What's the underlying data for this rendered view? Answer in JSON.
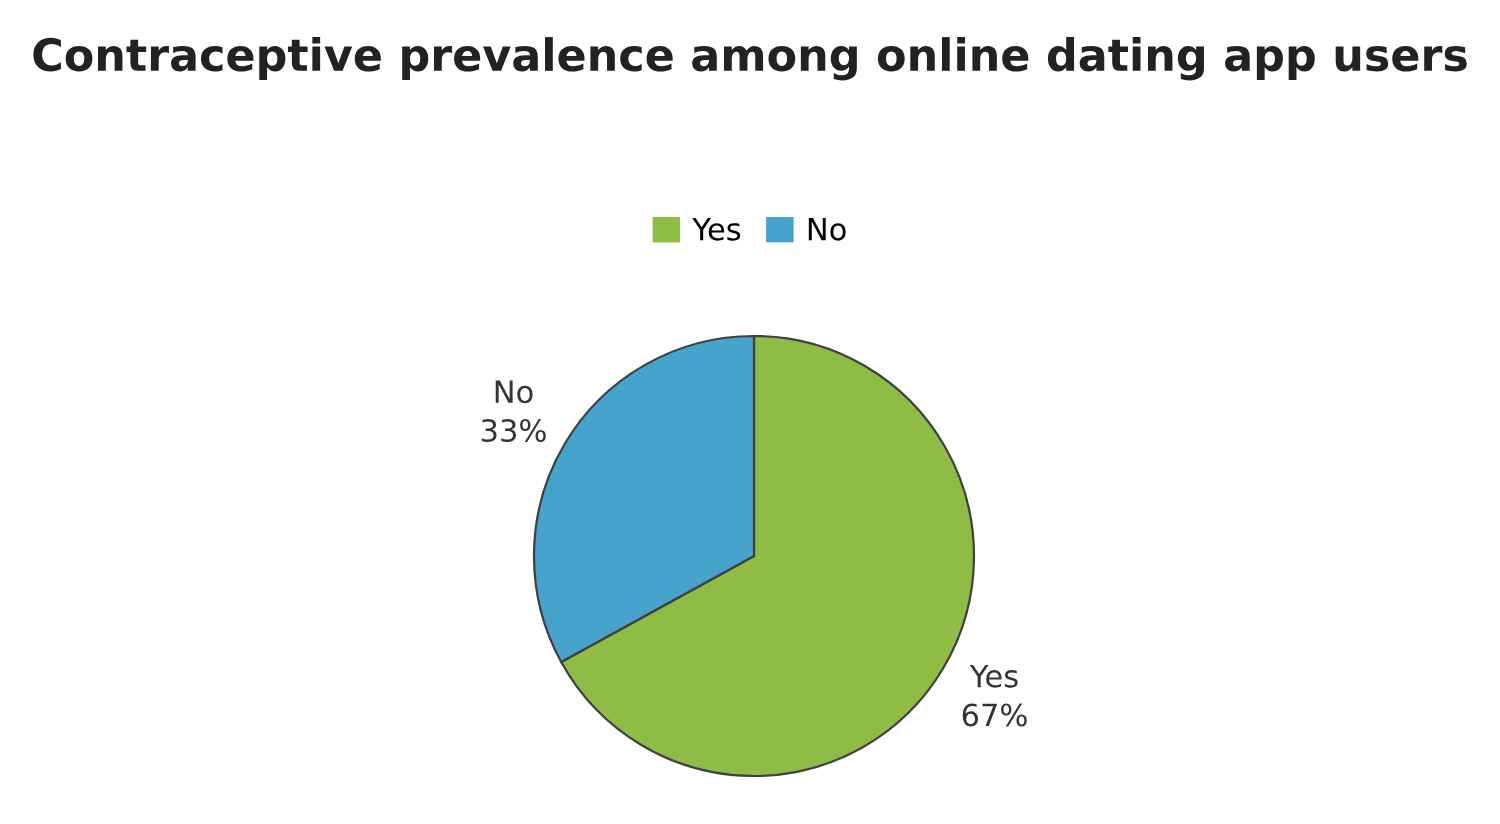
{
  "chart_data": {
    "type": "pie",
    "title": "Contraceptive prevalence among online dating app users",
    "categories": [
      "Yes",
      "No"
    ],
    "values": [
      67,
      33
    ],
    "value_labels": [
      "67%",
      "33%"
    ],
    "colors": [
      "#8fbc45",
      "#45a3cc"
    ],
    "legend": "top"
  }
}
